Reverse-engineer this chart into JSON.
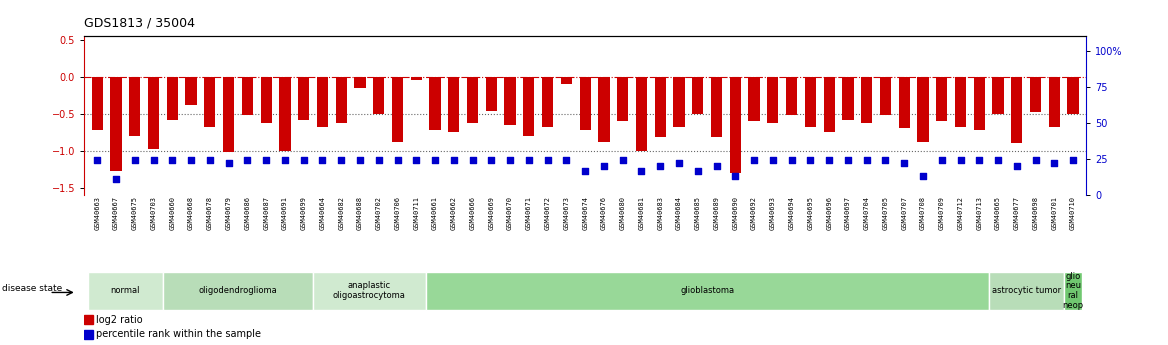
{
  "title": "GDS1813 / 35004",
  "samples": [
    "GSM40663",
    "GSM40667",
    "GSM40675",
    "GSM40703",
    "GSM40660",
    "GSM40668",
    "GSM40678",
    "GSM40679",
    "GSM40686",
    "GSM40687",
    "GSM40691",
    "GSM40699",
    "GSM40664",
    "GSM40682",
    "GSM40688",
    "GSM40702",
    "GSM40706",
    "GSM40711",
    "GSM40661",
    "GSM40662",
    "GSM40666",
    "GSM40669",
    "GSM40670",
    "GSM40671",
    "GSM40672",
    "GSM40673",
    "GSM40674",
    "GSM40676",
    "GSM40680",
    "GSM40681",
    "GSM40683",
    "GSM40684",
    "GSM40685",
    "GSM40689",
    "GSM40690",
    "GSM40692",
    "GSM40693",
    "GSM40694",
    "GSM40695",
    "GSM40696",
    "GSM40697",
    "GSM40704",
    "GSM40705",
    "GSM40707",
    "GSM40708",
    "GSM40709",
    "GSM40712",
    "GSM40713",
    "GSM40665",
    "GSM40677",
    "GSM40698",
    "GSM40701",
    "GSM40710"
  ],
  "log2_ratio": [
    -0.72,
    -1.28,
    -0.8,
    -0.98,
    -0.58,
    -0.38,
    -0.68,
    -1.02,
    -0.52,
    -0.62,
    -1.0,
    -0.58,
    -0.68,
    -0.62,
    -0.15,
    -0.5,
    -0.88,
    -0.04,
    -0.72,
    -0.75,
    -0.62,
    -0.46,
    -0.65,
    -0.8,
    -0.68,
    -0.1,
    -0.72,
    -0.88,
    -0.6,
    -1.0,
    -0.82,
    -0.68,
    -0.5,
    -0.82,
    -1.3,
    -0.6,
    -0.62,
    -0.52,
    -0.68,
    -0.75,
    -0.58,
    -0.62,
    -0.52,
    -0.7,
    -0.88,
    -0.6,
    -0.68,
    -0.72,
    -0.5,
    -0.9,
    -0.48,
    -0.68,
    -0.5
  ],
  "percentile": [
    22,
    10,
    22,
    22,
    22,
    22,
    22,
    20,
    22,
    22,
    22,
    22,
    22,
    22,
    22,
    22,
    22,
    22,
    22,
    22,
    22,
    22,
    22,
    22,
    22,
    22,
    15,
    18,
    22,
    15,
    18,
    20,
    15,
    18,
    12,
    22,
    22,
    22,
    22,
    22,
    22,
    22,
    22,
    20,
    12,
    22,
    22,
    22,
    22,
    18,
    22,
    20,
    22
  ],
  "disease_groups": [
    {
      "label": "normal",
      "start": 0,
      "end": 4,
      "color": "#d0ead0"
    },
    {
      "label": "oligodendroglioma",
      "start": 4,
      "end": 12,
      "color": "#b8ddb8"
    },
    {
      "label": "anaplastic\noligoastrocytoma",
      "start": 12,
      "end": 18,
      "color": "#d0ead0"
    },
    {
      "label": "glioblastoma",
      "start": 18,
      "end": 48,
      "color": "#98d898"
    },
    {
      "label": "astrocytic tumor",
      "start": 48,
      "end": 52,
      "color": "#b8ddb8"
    },
    {
      "label": "glio\nneu\nral\nneop",
      "start": 52,
      "end": 53,
      "color": "#70c870"
    }
  ],
  "ylim_left": [
    -1.6,
    0.55
  ],
  "ylim_right": [
    0,
    110
  ],
  "yticks_left": [
    0.5,
    0.0,
    -0.5,
    -1.0,
    -1.5
  ],
  "yticks_right": [
    0,
    25,
    50,
    75,
    100
  ],
  "bar_color": "#cc0000",
  "dot_color": "#0000cc",
  "bg_color": "#ffffff"
}
